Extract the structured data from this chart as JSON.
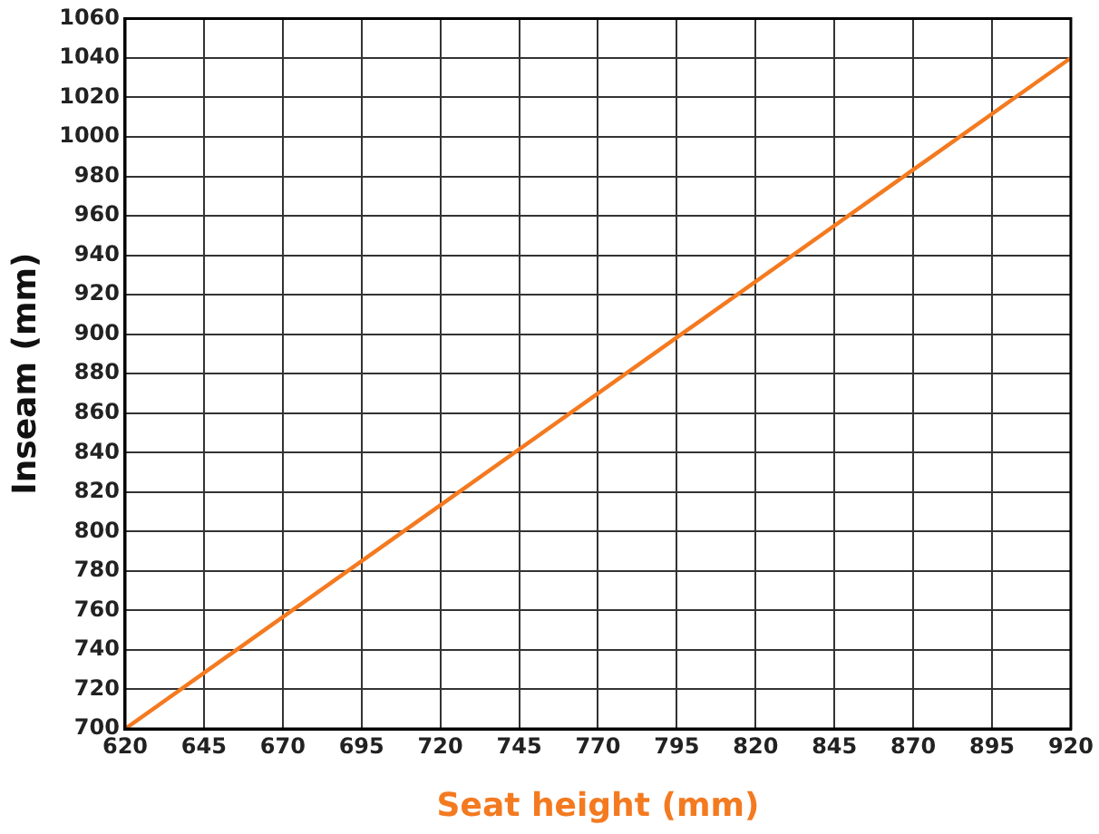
{
  "chart_data": {
    "type": "line",
    "xlabel": "Seat height (mm)",
    "ylabel": "Inseam (mm)",
    "x": [
      620,
      920
    ],
    "series": [
      {
        "color": "#f47a20",
        "values": [
          700,
          1040
        ]
      }
    ],
    "xlim": [
      620,
      920
    ],
    "xticks": [
      620,
      645,
      670,
      695,
      720,
      745,
      770,
      795,
      820,
      845,
      870,
      895,
      920
    ],
    "ylim": [
      700,
      1060
    ],
    "yticks": [
      700,
      720,
      740,
      760,
      780,
      800,
      820,
      840,
      860,
      880,
      900,
      920,
      940,
      960,
      980,
      1000,
      1020,
      1040,
      1060
    ],
    "grid": true,
    "legend": false,
    "marker": "none",
    "line_style": "solid"
  }
}
